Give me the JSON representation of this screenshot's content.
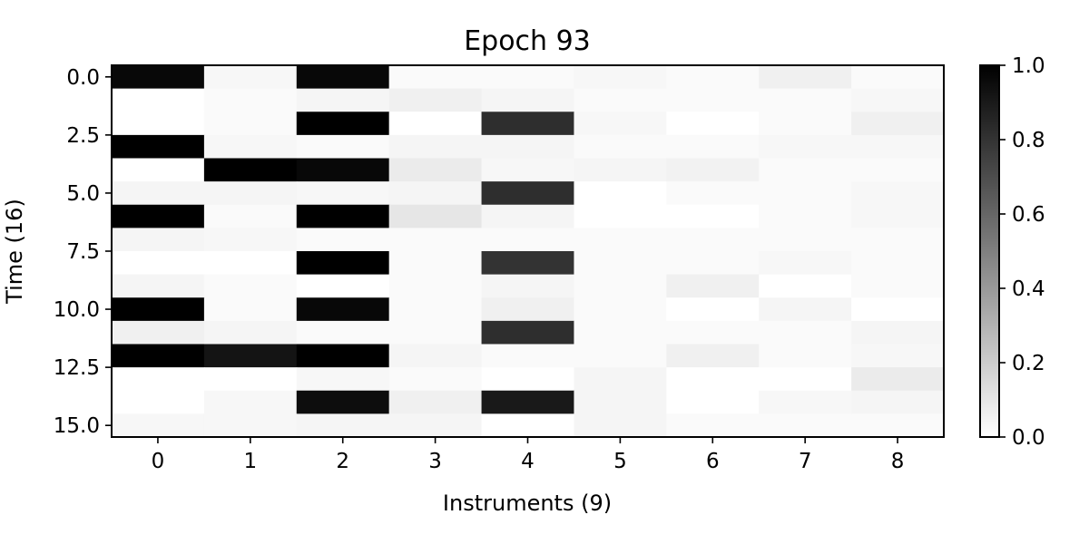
{
  "chart_data": {
    "type": "heatmap",
    "title": "Epoch 93",
    "xlabel": "Instruments (9)",
    "ylabel": "Time (16)",
    "x_ticks": [
      "0",
      "1",
      "2",
      "3",
      "4",
      "5",
      "6",
      "7",
      "8"
    ],
    "y_ticks": [
      "0.0",
      "2.5",
      "5.0",
      "7.5",
      "10.0",
      "12.5",
      "15.0"
    ],
    "y_tick_values": [
      0,
      2.5,
      5,
      7.5,
      10,
      12.5,
      15
    ],
    "colorbar": {
      "ticks": [
        "0.0",
        "0.2",
        "0.4",
        "0.6",
        "0.8",
        "1.0"
      ],
      "tick_values": [
        0,
        0.2,
        0.4,
        0.6,
        0.8,
        1.0
      ],
      "range": [
        0,
        1
      ],
      "colormap": "Greys"
    },
    "rows": 16,
    "cols": 9,
    "values": [
      [
        0.97,
        0.03,
        0.97,
        0.02,
        0.02,
        0.03,
        0.02,
        0.06,
        0.02
      ],
      [
        0.0,
        0.02,
        0.04,
        0.06,
        0.04,
        0.02,
        0.02,
        0.02,
        0.03
      ],
      [
        0.0,
        0.02,
        1.0,
        0.0,
        0.82,
        0.03,
        0.0,
        0.02,
        0.06
      ],
      [
        1.0,
        0.03,
        0.02,
        0.04,
        0.04,
        0.02,
        0.02,
        0.03,
        0.03
      ],
      [
        0.0,
        1.0,
        0.97,
        0.08,
        0.03,
        0.04,
        0.05,
        0.02,
        0.02
      ],
      [
        0.04,
        0.04,
        0.03,
        0.04,
        0.82,
        0.0,
        0.02,
        0.02,
        0.03
      ],
      [
        1.0,
        0.02,
        1.0,
        0.1,
        0.04,
        0.0,
        0.0,
        0.02,
        0.03
      ],
      [
        0.04,
        0.03,
        0.02,
        0.02,
        0.02,
        0.02,
        0.02,
        0.02,
        0.02
      ],
      [
        0.0,
        0.0,
        1.0,
        0.02,
        0.8,
        0.02,
        0.02,
        0.03,
        0.02
      ],
      [
        0.04,
        0.02,
        0.0,
        0.02,
        0.04,
        0.02,
        0.06,
        0.0,
        0.02
      ],
      [
        1.0,
        0.02,
        0.97,
        0.02,
        0.06,
        0.02,
        0.0,
        0.04,
        0.0
      ],
      [
        0.06,
        0.04,
        0.02,
        0.02,
        0.82,
        0.02,
        0.02,
        0.02,
        0.04
      ],
      [
        1.0,
        0.92,
        1.0,
        0.04,
        0.02,
        0.02,
        0.06,
        0.02,
        0.03
      ],
      [
        0.0,
        0.0,
        0.03,
        0.02,
        0.0,
        0.04,
        0.0,
        0.0,
        0.08
      ],
      [
        0.0,
        0.03,
        0.95,
        0.06,
        0.9,
        0.04,
        0.0,
        0.03,
        0.04
      ],
      [
        0.03,
        0.03,
        0.04,
        0.04,
        0.0,
        0.04,
        0.02,
        0.02,
        0.02
      ]
    ]
  }
}
